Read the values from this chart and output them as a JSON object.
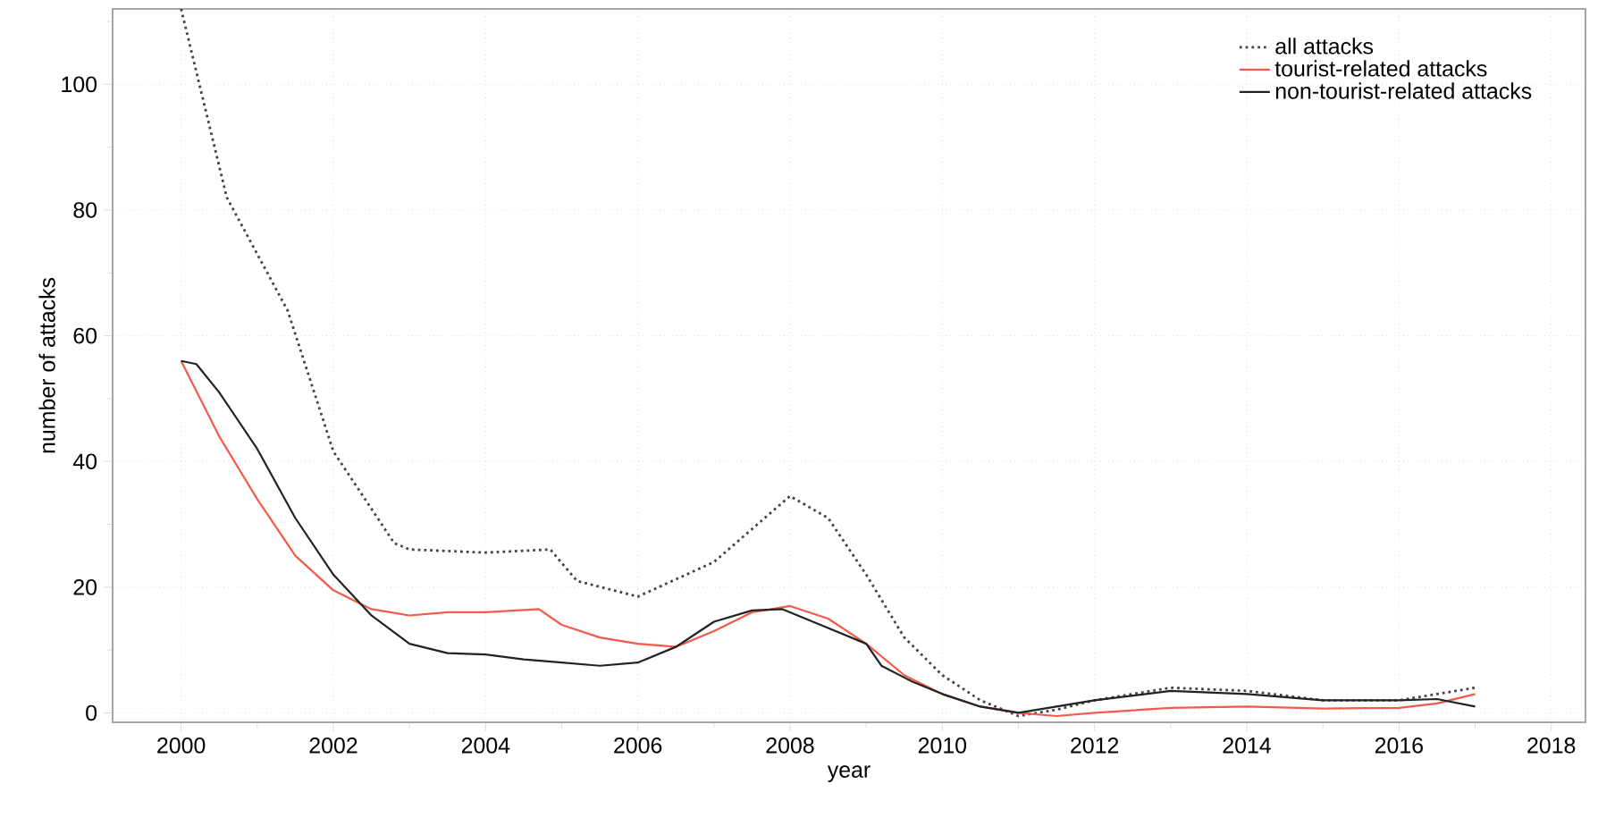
{
  "chart_data": {
    "type": "line",
    "xlabel": "year",
    "ylabel": "number of attacks",
    "xlim": [
      1999.1,
      2018.45
    ],
    "ylim": [
      -1.5,
      112
    ],
    "xticks": [
      2000,
      {
        "value": 2001,
        "label": null
      },
      2002,
      {
        "value": 2003,
        "label": null
      },
      2004,
      {
        "value": 2005,
        "label": null
      },
      2006,
      {
        "value": 2007,
        "label": null
      },
      2008,
      {
        "value": 2009,
        "label": null
      },
      2010,
      {
        "value": 2011,
        "label": null
      },
      2012,
      {
        "value": 2013,
        "label": null
      },
      2014,
      {
        "value": 2015,
        "label": null
      },
      2016,
      {
        "value": 2017,
        "label": null
      },
      2018
    ],
    "yticks": [
      0,
      {
        "value": 10,
        "label": null
      },
      20,
      {
        "value": 30,
        "label": null
      },
      40,
      {
        "value": 50,
        "label": null
      },
      60,
      {
        "value": 70,
        "label": null
      },
      80,
      {
        "value": 90,
        "label": null
      },
      100,
      {
        "value": 110,
        "label": null
      }
    ],
    "grid": true,
    "legend": "top right",
    "marker": "none",
    "series": [
      {
        "name": "all attacks",
        "color": "#444444",
        "line_style": "dotted",
        "x": [
          2000,
          2000.6,
          2001.4,
          2002,
          2002.8,
          2003,
          2004,
          2004.85,
          2005.2,
          2006,
          2007,
          2008,
          2008.5,
          2009,
          2009.5,
          2010,
          2010.5,
          2011,
          2011.5,
          2012,
          2013,
          2014,
          2015,
          2016,
          2017
        ],
        "values": [
          112,
          82,
          64,
          41.6,
          27,
          26,
          25.5,
          26,
          21,
          18.5,
          24,
          34.5,
          31,
          22,
          12,
          6,
          2,
          -0.5,
          0.5,
          2,
          4,
          3.5,
          2,
          2,
          4
        ]
      },
      {
        "name": "tourist-related attacks",
        "color": "#f4594a",
        "line_style": "solid",
        "x": [
          2000,
          2000.5,
          2001,
          2001.5,
          2002,
          2002.5,
          2003,
          2003.5,
          2004,
          2004.7,
          2005,
          2005.5,
          2006,
          2006.5,
          2007,
          2007.5,
          2008,
          2008.5,
          2009,
          2009.5,
          2010,
          2010.5,
          2011,
          2011.5,
          2012,
          2013,
          2014,
          2015,
          2016,
          2016.5,
          2017
        ],
        "values": [
          56,
          44,
          34,
          25,
          19.5,
          16.5,
          15.5,
          16,
          16,
          16.5,
          14,
          12,
          11,
          10.5,
          13,
          16,
          17,
          15,
          11,
          6,
          3,
          1,
          0,
          -0.5,
          0,
          0.8,
          1,
          0.7,
          0.8,
          1.5,
          3
        ]
      },
      {
        "name": "non-tourist-related attacks",
        "color": "#222222",
        "line_style": "solid",
        "x": [
          2000,
          2000.2,
          2000.5,
          2001,
          2001.5,
          2002,
          2002.5,
          2003,
          2003.5,
          2004,
          2004.5,
          2005,
          2005.5,
          2006,
          2006.5,
          2007,
          2007.5,
          2007.9,
          2008.5,
          2009,
          2009.2,
          2009.6,
          2010,
          2010.5,
          2011,
          2011.5,
          2012,
          2013,
          2014,
          2015,
          2016,
          2016.5,
          2017
        ],
        "values": [
          56,
          55.5,
          51,
          42,
          31,
          22,
          15.5,
          11,
          9.5,
          9.3,
          8.5,
          8,
          7.5,
          8,
          10.5,
          14.5,
          16.3,
          16.5,
          13.5,
          11,
          7.5,
          5,
          3,
          1,
          0,
          1,
          2,
          3.5,
          3,
          2,
          2,
          2.2,
          1
        ]
      }
    ]
  }
}
